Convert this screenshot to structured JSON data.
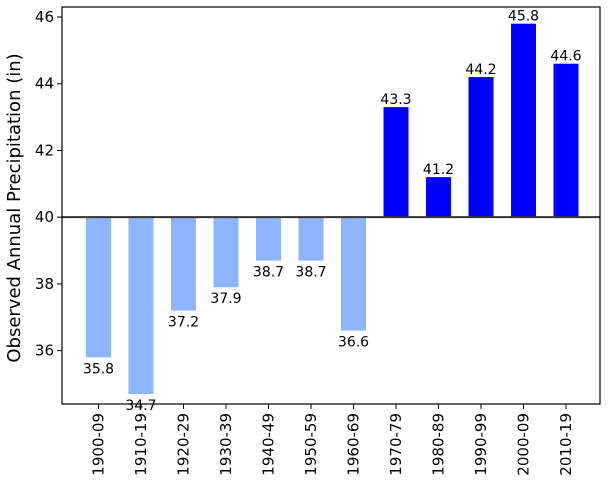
{
  "chart_data": {
    "type": "bar",
    "title": "",
    "xlabel": "",
    "ylabel": "Observed Annual Precipitation (in)",
    "categories": [
      "1900-09",
      "1910-19",
      "1920-29",
      "1930-39",
      "1940-49",
      "1950-59",
      "1960-69",
      "1970-79",
      "1980-89",
      "1990-99",
      "2000-09",
      "2010-19"
    ],
    "values": [
      35.8,
      34.7,
      37.2,
      37.9,
      38.7,
      38.7,
      36.6,
      43.3,
      41.2,
      44.2,
      45.8,
      44.6
    ],
    "value_labels": [
      "35.8",
      "34.7",
      "37.2",
      "37.9",
      "38.7",
      "38.7",
      "36.6",
      "43.3",
      "41.2",
      "44.2",
      "45.8",
      "44.6"
    ],
    "baseline": 40,
    "ylim": [
      34.4,
      46.3
    ],
    "yticks": [
      36,
      38,
      40,
      42,
      44,
      46
    ],
    "grid": false,
    "colors": {
      "below": "#8cb4ff",
      "above": "#0000ff",
      "baseline": "#333333",
      "axis": "#000000"
    }
  }
}
